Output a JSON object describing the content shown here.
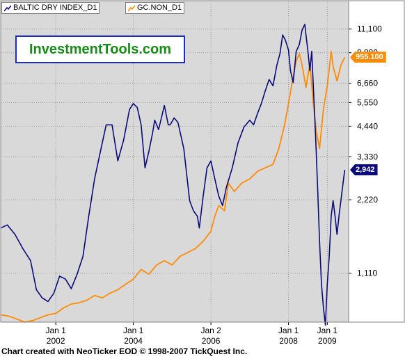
{
  "brand": "InvestmentTools.com",
  "footer": "Chart created with NeoTicker EOD © 1998-2007 TickQuest Inc.",
  "colors": {
    "baltic": "#0a0a78",
    "gold": "#ff8c00",
    "plot_bg": "#d9d9d9",
    "grid": "#9a9a9a"
  },
  "chart_data": {
    "type": "line",
    "scale": "log",
    "ylim": [
      700,
      14500
    ],
    "xlim": [
      2000.58,
      2009.55
    ],
    "y_ticks": [
      "1,110",
      "2,220",
      "3,330",
      "4,440",
      "5,550",
      "6,660",
      "8,880",
      "11,100"
    ],
    "x_ticks": [
      {
        "line1": "Jan 1",
        "line2": "2002",
        "x": 2002.0
      },
      {
        "line1": "Jan 1",
        "line2": "2004",
        "x": 2004.0
      },
      {
        "line1": "Jan 2",
        "line2": "2006",
        "x": 2006.0
      },
      {
        "line1": "Jan 1",
        "line2": "2008",
        "x": 2008.0
      },
      {
        "line1": "Jan 1",
        "line2": "2009",
        "x": 2009.0
      }
    ],
    "series": [
      {
        "name": "BALTIC DRY INDEX_D1",
        "last_label": "2,942",
        "x": [
          2000.58,
          2000.75,
          2000.95,
          2001.15,
          2001.35,
          2001.5,
          2001.65,
          2001.8,
          2001.95,
          2002.1,
          2002.25,
          2002.4,
          2002.55,
          2002.7,
          2002.85,
          2003.0,
          2003.15,
          2003.3,
          2003.45,
          2003.6,
          2003.75,
          2003.9,
          2004.0,
          2004.1,
          2004.2,
          2004.3,
          2004.4,
          2004.5,
          2004.55,
          2004.65,
          2004.8,
          2004.9,
          2004.95,
          2005.05,
          2005.15,
          2005.3,
          2005.45,
          2005.55,
          2005.65,
          2005.7,
          2005.8,
          2005.9,
          2006.0,
          2006.1,
          2006.2,
          2006.3,
          2006.4,
          2006.55,
          2006.7,
          2006.85,
          2007.0,
          2007.1,
          2007.2,
          2007.3,
          2007.4,
          2007.5,
          2007.6,
          2007.7,
          2007.78,
          2007.85,
          2007.92,
          2008.0,
          2008.05,
          2008.12,
          2008.2,
          2008.28,
          2008.35,
          2008.42,
          2008.45,
          2008.5,
          2008.55,
          2008.6,
          2008.65,
          2008.7,
          2008.75,
          2008.8,
          2008.85,
          2008.9,
          2008.95,
          2009.0,
          2009.05,
          2009.1,
          2009.15,
          2009.2,
          2009.25,
          2009.3,
          2009.38,
          2009.45
        ],
        "values": [
          1700,
          1750,
          1600,
          1400,
          1250,
          950,
          880,
          850,
          920,
          1080,
          1050,
          960,
          1100,
          1300,
          1900,
          2700,
          3500,
          4500,
          4500,
          3200,
          3900,
          5200,
          5500,
          5300,
          4500,
          3000,
          3500,
          4200,
          4700,
          4300,
          5400,
          4500,
          4500,
          4800,
          4600,
          3600,
          2200,
          2000,
          1900,
          1700,
          2300,
          3000,
          3200,
          2700,
          2300,
          2100,
          2500,
          3000,
          3800,
          4400,
          4700,
          4500,
          5000,
          5500,
          6200,
          6900,
          6500,
          7900,
          8800,
          10500,
          10000,
          9100,
          7500,
          6700,
          9000,
          9600,
          11000,
          11600,
          10500,
          9000,
          7500,
          9000,
          6000,
          4000,
          2500,
          1500,
          1000,
          800,
          680,
          1000,
          1300,
          1900,
          2200,
          1900,
          1600,
          1900,
          2400,
          2942
        ]
      },
      {
        "name": "GC.NON_D1",
        "last_label": "955.100",
        "x": [
          2000.58,
          2000.8,
          2001.0,
          2001.2,
          2001.4,
          2001.6,
          2001.8,
          2002.0,
          2002.2,
          2002.4,
          2002.6,
          2002.8,
          2003.0,
          2003.2,
          2003.4,
          2003.6,
          2003.8,
          2004.0,
          2004.2,
          2004.4,
          2004.6,
          2004.8,
          2005.0,
          2005.2,
          2005.4,
          2005.6,
          2005.8,
          2006.0,
          2006.1,
          2006.2,
          2006.35,
          2006.45,
          2006.6,
          2006.8,
          2007.0,
          2007.2,
          2007.4,
          2007.6,
          2007.75,
          2007.9,
          2008.0,
          2008.1,
          2008.2,
          2008.28,
          2008.35,
          2008.45,
          2008.55,
          2008.65,
          2008.72,
          2008.8,
          2008.9,
          2009.0,
          2009.1,
          2009.15,
          2009.25,
          2009.35,
          2009.45
        ],
        "values": [
          750,
          740,
          720,
          700,
          710,
          730,
          750,
          760,
          800,
          830,
          840,
          860,
          900,
          880,
          920,
          950,
          1000,
          1050,
          1150,
          1100,
          1200,
          1250,
          1200,
          1300,
          1350,
          1400,
          1500,
          1650,
          1900,
          2100,
          2000,
          2600,
          2400,
          2600,
          2700,
          2900,
          3000,
          3100,
          3600,
          4500,
          5500,
          6800,
          8200,
          8800,
          7900,
          6400,
          8000,
          5300,
          4200,
          3600,
          5200,
          6500,
          9000,
          7800,
          6800,
          7900,
          8500
        ]
      }
    ]
  }
}
